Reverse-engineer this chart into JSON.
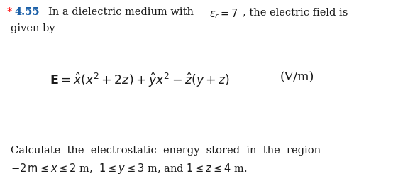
{
  "background_color": "#ffffff",
  "star_color": "#ff0000",
  "number_color": "#1a5fa8",
  "text_color": "#1a1a1a",
  "fig_width": 5.61,
  "fig_height": 2.76,
  "dpi": 100,
  "font_size_main": 10.5,
  "font_size_eq": 12.5,
  "font_size_bottom": 10.5,
  "line1_part1": "In a dielectric medium with ",
  "line1_epsilon": "$\\epsilon_r = 7$",
  "line1_part2": ", the electric field is",
  "line2": "given by",
  "eq_main": "$\\mathbf{E} = \\hat{x}(x^2 + 2z) + \\hat{y}x^2 - \\hat{z}(y + z)$",
  "eq_units": "(V/m)",
  "bot1": "Calculate  the  electrostatic  energy  stored  in  the  region",
  "bot2a": "$-2\\,\\mathrm{m} \\leq x \\leq 2$",
  "bot2b": " m,  ",
  "bot2c": "$1 \\leq y \\leq 3$",
  "bot2d": " m, and ",
  "bot2e": "$1 \\leq z \\leq 4$",
  "bot2f": " m."
}
